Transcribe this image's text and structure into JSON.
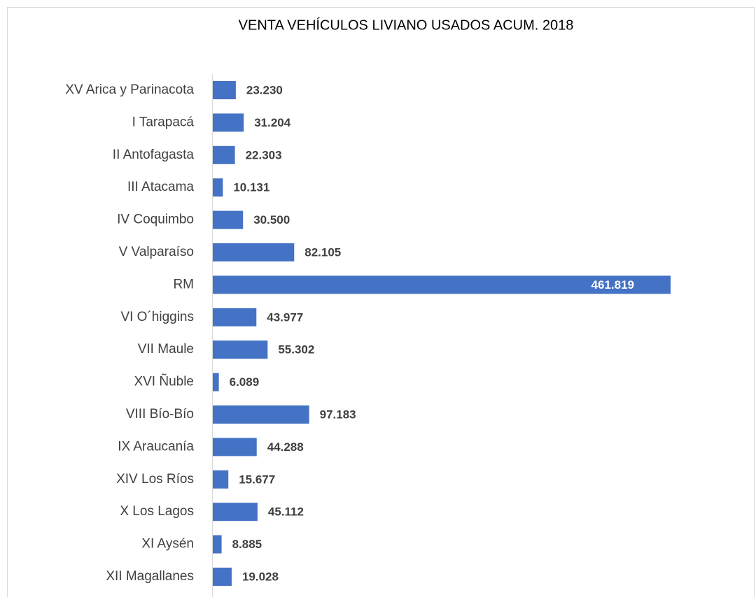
{
  "chart_data": {
    "type": "bar",
    "orientation": "horizontal",
    "title": "VENTA VEHÍCULOS LIVIANO USADOS ACUM. 2018",
    "categories": [
      "XV Arica y Parinacota",
      "I Tarapacá",
      "II Antofagasta",
      "III Atacama",
      "IV Coquimbo",
      "V Valparaíso",
      "RM",
      "VI O´higgins",
      "VII Maule",
      "XVI Ñuble",
      "VIII Bío-Bío",
      "IX Araucanía",
      "XIV Los Ríos",
      "X Los Lagos",
      "XI Aysén",
      "XII Magallanes"
    ],
    "values": [
      23230,
      31204,
      22303,
      10131,
      30500,
      82105,
      461819,
      43977,
      55302,
      6089,
      97183,
      44288,
      15677,
      45112,
      8885,
      19028
    ],
    "value_labels": [
      "23.230",
      "31.204",
      "22.303",
      "10.131",
      "30.500",
      "82.105",
      "461.819",
      "43.977",
      "55.302",
      "6.089",
      "97.183",
      "44.288",
      "15.677",
      "45.112",
      "8.885",
      "19.028"
    ],
    "color": "#4472c4"
  }
}
